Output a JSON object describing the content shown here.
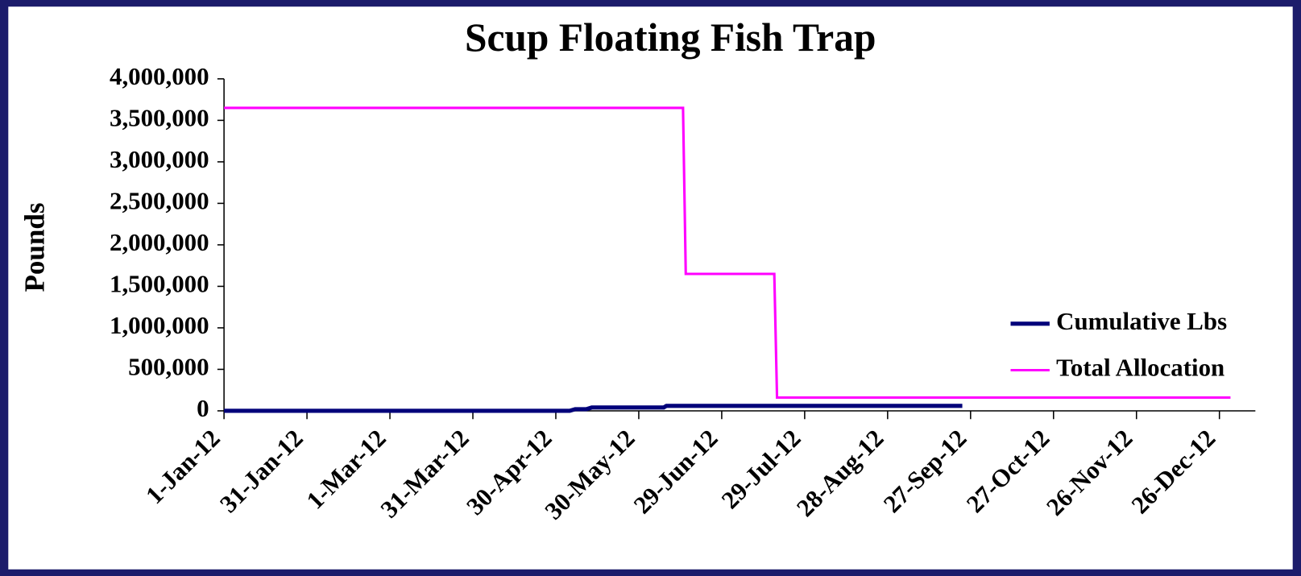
{
  "chart_data": {
    "type": "line",
    "title": "Scup Floating Fish Trap",
    "y_label": "Pounds",
    "series": [
      {
        "name": "Cumulative Lbs",
        "color": "#00007a",
        "x": [
          "2012-01-01",
          "2012-05-05",
          "2012-05-07",
          "2012-05-11",
          "2012-05-13",
          "2012-06-08",
          "2012-06-09",
          "2012-09-24"
        ],
        "values": [
          0,
          0,
          20000,
          20000,
          40000,
          40000,
          60000,
          60000
        ]
      },
      {
        "name": "Total Allocation",
        "color": "#ff00ff",
        "x": [
          "2012-01-01",
          "2012-06-15",
          "2012-06-16",
          "2012-07-18",
          "2012-07-19",
          "2012-12-30"
        ],
        "values": [
          3650000,
          3650000,
          1650000,
          1650000,
          160000,
          160000
        ]
      }
    ],
    "xlim": [
      "2012-01-01",
      "2013-01-08"
    ],
    "xticks": [
      {
        "value": "2012-01-01",
        "label": "1-Jan-12"
      },
      {
        "value": "2012-01-31",
        "label": "31-Jan-12"
      },
      {
        "value": "2012-03-01",
        "label": "1-Mar-12"
      },
      {
        "value": "2012-03-31",
        "label": "31-Mar-12"
      },
      {
        "value": "2012-04-30",
        "label": "30-Apr-12"
      },
      {
        "value": "2012-05-30",
        "label": "30-May-12"
      },
      {
        "value": "2012-06-29",
        "label": "29-Jun-12"
      },
      {
        "value": "2012-07-29",
        "label": "29-Jul-12"
      },
      {
        "value": "2012-08-28",
        "label": "28-Aug-12"
      },
      {
        "value": "2012-09-27",
        "label": "27-Sep-12"
      },
      {
        "value": "2012-10-27",
        "label": "27-Oct-12"
      },
      {
        "value": "2012-11-26",
        "label": "26-Nov-12"
      },
      {
        "value": "2012-12-26",
        "label": "26-Dec-12"
      }
    ],
    "ylim": [
      0,
      4000000
    ],
    "yticks": [
      0,
      {
        "value": 500000,
        "label": "500,000"
      },
      {
        "value": 1000000,
        "label": "1,000,000"
      },
      {
        "value": 1500000,
        "label": "1,500,000"
      },
      {
        "value": 2000000,
        "label": "2,000,000"
      },
      {
        "value": 2500000,
        "label": "2,500,000"
      },
      {
        "value": 3000000,
        "label": "3,000,000"
      },
      {
        "value": 3500000,
        "label": "3,500,000"
      },
      {
        "value": 4000000,
        "label": "4,000,000"
      }
    ],
    "grid": false,
    "legend": "right"
  }
}
